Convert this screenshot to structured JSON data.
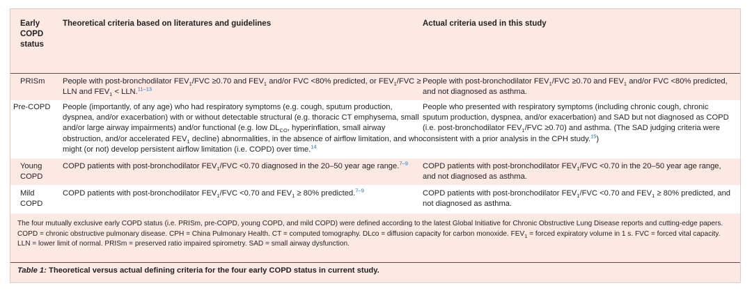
{
  "header": {
    "col1": "Early COPD status",
    "col1_lines": [
      "Early",
      "COPD",
      "status"
    ],
    "col2": "Theoretical criteria based on literatures and guidelines",
    "col3": "Actual criteria used in this study"
  },
  "rows": [
    {
      "status": "PRISm",
      "theoretical": "People with post-bronchodilator FEV1/FVC ≥0.70 and FEV1 and/or FVC <80% predicted, or FEV1/FVC ≥ LLN and FEV1 < LLN.11–13",
      "theoretical_ref": "11–13",
      "actual": "People with post-bronchodilator FEV1/FVC ≥0.70 and FEV1 and/or FVC <80% predicted, and not diagnosed as asthma."
    },
    {
      "status": "Pre-COPD",
      "theoretical": "People (importantly, of any age) who had respiratory symptoms (e.g. cough, sputum production, dyspnea, and/or exacerbation) with or without detectable structural (e.g. thoracic CT emphysema, small and/or large airway impairments) and/or functional (e.g. low DLCO, hyperinflation, small airway obstruction, and/or accelerated FEV1 decline) abnormalities, in the absence of airflow limitation, and who might (or not) develop persistent airflow limitation (i.e. COPD) over time.14",
      "theoretical_ref": "14",
      "actual": "People who presented with respiratory symptoms (including chronic cough, chronic sputum production, dyspnea, and/or exacerbation) and SAD but not diagnosed as COPD (i.e. post-bronchodilator FEV1/FVC ≥0.70) and asthma. (The SAD judging criteria were consistent with a prior analysis in the CPH study.15)",
      "actual_ref": "15"
    },
    {
      "status": "Young COPD",
      "status_lines": [
        "Young",
        "COPD"
      ],
      "theoretical": "COPD patients with post-bronchodilator FEV1/FVC <0.70 diagnosed in the 20–50 year age range.7–9",
      "theoretical_ref": "7–9",
      "actual": "COPD patients with post-bronchodilator FEV1/FVC <0.70 in the 20–50 year age range, and not diagnosed as asthma."
    },
    {
      "status": "Mild COPD",
      "status_lines": [
        "Mild",
        "COPD"
      ],
      "theoretical": "COPD patients with post-bronchodilator FEV1/FVC <0.70 and FEV1 ≥ 80% predicted.7–9",
      "theoretical_ref": "7–9",
      "actual": "COPD patients with post-bronchodilator FEV1/FVC <0.70 and FEV1 ≥ 80% predicted, and not diagnosed as asthma."
    }
  ],
  "footnote": "The four mutually exclusive early COPD status (i.e. PRISm, pre-COPD, young COPD, and mild COPD) were defined according to the latest Global Initiative for Chronic Obstructive Lung Disease reports and cutting-edge papers. COPD = chronic obstructive pulmonary disease. CPH = China Pulmonary Health. CT = computed tomography. DLco = diffusion capacity for carbon monoxide. FEV1 = forced expiratory volume in 1 s. FVC = forced vital capacity. LLN = lower limit of normal. PRISm = preserved ratio impaired spirometry. SAD = small airway dysfunction.",
  "caption": {
    "label": "Table 1:",
    "text": "Theoretical versus actual defining criteria for the four early COPD status in current study."
  },
  "colors": {
    "panel": "#fce9e4",
    "rule": "#7a3e3e",
    "reference": "#1b6fb5"
  }
}
